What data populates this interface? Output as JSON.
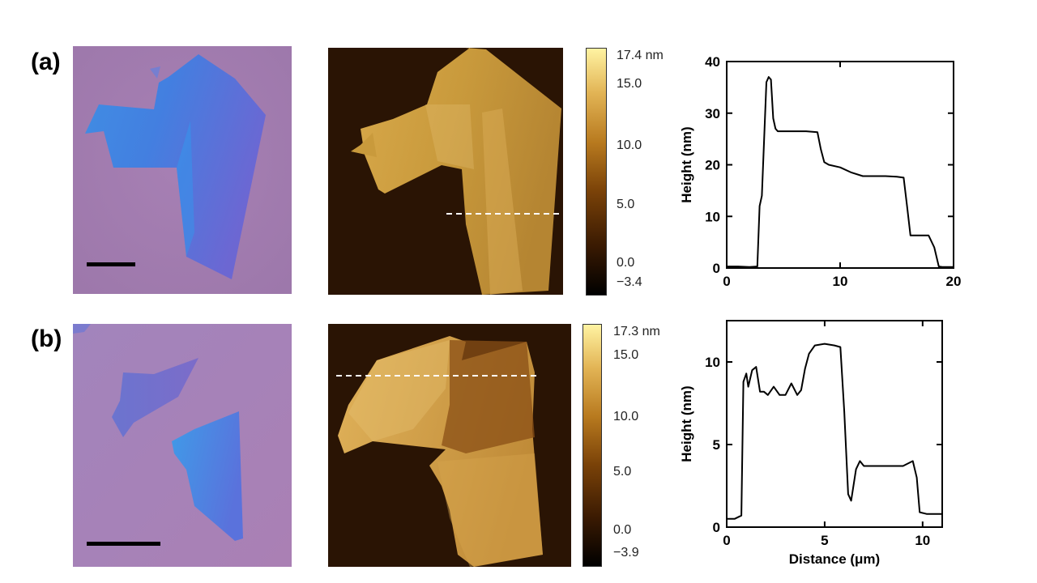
{
  "panels": [
    {
      "label": "(a)",
      "colorbar": {
        "max_label": "17.4 nm",
        "ticks": [
          "15.0",
          "10.0",
          "5.0",
          "0.0"
        ],
        "min_label": "−3.4"
      },
      "profile": {
        "ylabel": "Height (nm)",
        "xlabel": "",
        "x_ticks": [
          "0",
          "10",
          "20"
        ],
        "y_ticks": [
          "0",
          "10",
          "20",
          "30",
          "40"
        ],
        "xlim": [
          0,
          20
        ],
        "ylim": [
          0,
          40
        ],
        "x": [
          0,
          1,
          2,
          2.7,
          2.9,
          3.1,
          3.3,
          3.5,
          3.7,
          3.9,
          4.1,
          4.3,
          4.5,
          5,
          6,
          7,
          8,
          8.3,
          8.6,
          9,
          10,
          11,
          12,
          13,
          14,
          15,
          15.6,
          15.9,
          16.2,
          17,
          17.8,
          18.3,
          18.7,
          19,
          20
        ],
        "y": [
          0.3,
          0.3,
          0.2,
          0.3,
          12,
          14,
          25,
          36,
          37,
          36.5,
          29,
          27,
          26.5,
          26.5,
          26.5,
          26.5,
          26.3,
          23,
          20.5,
          20,
          19.5,
          18.5,
          17.8,
          17.8,
          17.8,
          17.7,
          17.5,
          12,
          6.3,
          6.3,
          6.3,
          4,
          0.3,
          0.2,
          0.2
        ]
      }
    },
    {
      "label": "(b)",
      "colorbar": {
        "max_label": "17.3 nm",
        "ticks": [
          "15.0",
          "10.0",
          "5.0",
          "0.0"
        ],
        "min_label": "−3.9"
      },
      "profile": {
        "ylabel": "Height (nm)",
        "xlabel": "Distance (μm)",
        "x_ticks": [
          "0",
          "5",
          "10"
        ],
        "y_ticks": [
          "0",
          "5",
          "10"
        ],
        "xlim": [
          0,
          11
        ],
        "ylim": [
          0,
          12.5
        ],
        "x": [
          0,
          0.4,
          0.75,
          0.85,
          1.0,
          1.1,
          1.3,
          1.5,
          1.7,
          1.9,
          2.1,
          2.4,
          2.7,
          3.0,
          3.3,
          3.6,
          3.8,
          4.0,
          4.2,
          4.5,
          5.0,
          5.5,
          5.8,
          6.0,
          6.2,
          6.35,
          6.6,
          6.8,
          7.0,
          7.5,
          8.0,
          8.5,
          9.0,
          9.5,
          9.7,
          9.85,
          10.2,
          11
        ],
        "y": [
          0.5,
          0.5,
          0.7,
          8.8,
          9.3,
          8.5,
          9.5,
          9.7,
          8.2,
          8.2,
          8.0,
          8.5,
          8.0,
          8.0,
          8.7,
          8.0,
          8.3,
          9.6,
          10.5,
          11.0,
          11.1,
          11.0,
          10.9,
          7.0,
          2.0,
          1.6,
          3.5,
          4.0,
          3.7,
          3.7,
          3.7,
          3.7,
          3.7,
          4.0,
          3.0,
          0.9,
          0.8,
          0.8
        ]
      }
    }
  ]
}
